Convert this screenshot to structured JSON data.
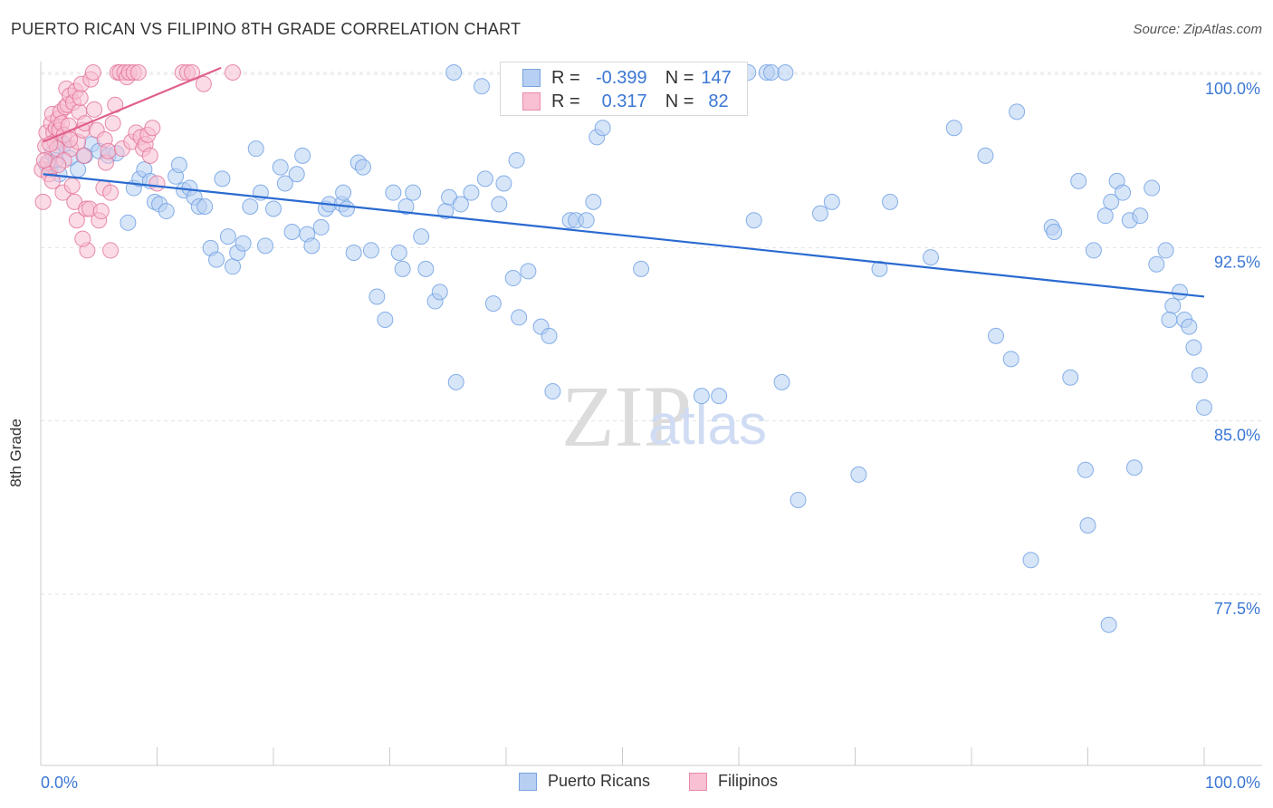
{
  "header": {
    "title": "PUERTO RICAN VS FILIPINO 8TH GRADE CORRELATION CHART",
    "source": "Source: ZipAtlas.com"
  },
  "watermark": {
    "zip": "ZIP",
    "atlas": "atlas"
  },
  "legend_top": {
    "rows": [
      {
        "r_label": "R =",
        "r_value": "-0.399",
        "n_label": "N =",
        "n_value": "147",
        "fill": "#b7cff2",
        "stroke": "#7aa3e0"
      },
      {
        "r_label": "R =",
        "r_value": "0.317",
        "n_label": "N =",
        "n_value": "82",
        "fill": "#f8c0d2",
        "stroke": "#e88aaa"
      }
    ]
  },
  "legend_bottom": [
    {
      "label": "Puerto Ricans",
      "fill": "#b7cff2",
      "stroke": "#7aa3e0"
    },
    {
      "label": "Filipinos",
      "fill": "#f8c0d2",
      "stroke": "#e88aaa"
    }
  ],
  "chart_data": {
    "type": "scatter",
    "title": "PUERTO RICAN VS FILIPINO 8TH GRADE CORRELATION CHART",
    "xlabel": "",
    "ylabel": "8th Grade",
    "xlim": [
      0,
      100
    ],
    "ylim": [
      70.0,
      100.6
    ],
    "x_tick_labels": [
      "0.0%",
      "100.0%"
    ],
    "y_ticks": [
      100.0,
      92.5,
      85.0,
      77.5
    ],
    "y_tick_labels": [
      "100.0%",
      "92.5%",
      "85.0%",
      "77.5%"
    ],
    "grid": true,
    "legend_position": "bottom",
    "series": [
      {
        "name": "Puerto Ricans",
        "color": "#6a9de4",
        "fill": "#b7cff2",
        "trend": {
          "x": [
            0.2,
            100
          ],
          "y": [
            95.6,
            90.3
          ]
        },
        "points": [
          [
            0.5,
            96.0
          ],
          [
            0.8,
            95.8
          ],
          [
            1.0,
            96.5
          ],
          [
            1.3,
            96.2
          ],
          [
            1.6,
            95.6
          ],
          [
            1.8,
            97.0
          ],
          [
            2.0,
            96.9
          ],
          [
            2.5,
            96.3
          ],
          [
            3.2,
            95.8
          ],
          [
            3.8,
            96.4
          ],
          [
            4.4,
            96.9
          ],
          [
            5.0,
            96.6
          ],
          [
            5.8,
            96.4
          ],
          [
            6.5,
            96.5
          ],
          [
            7.5,
            93.5
          ],
          [
            8.0,
            95.0
          ],
          [
            8.5,
            95.4
          ],
          [
            8.9,
            95.8
          ],
          [
            9.4,
            95.3
          ],
          [
            9.8,
            94.4
          ],
          [
            10.2,
            94.3
          ],
          [
            10.8,
            94.0
          ],
          [
            11.6,
            95.5
          ],
          [
            11.9,
            96.0
          ],
          [
            12.3,
            94.9
          ],
          [
            12.8,
            95.0
          ],
          [
            13.2,
            94.6
          ],
          [
            13.6,
            94.2
          ],
          [
            14.1,
            94.2
          ],
          [
            14.6,
            92.4
          ],
          [
            15.1,
            91.9
          ],
          [
            15.6,
            95.4
          ],
          [
            16.1,
            92.9
          ],
          [
            16.5,
            91.6
          ],
          [
            16.9,
            92.2
          ],
          [
            17.4,
            92.6
          ],
          [
            18.0,
            94.2
          ],
          [
            18.5,
            96.7
          ],
          [
            18.9,
            94.8
          ],
          [
            19.3,
            92.5
          ],
          [
            20.0,
            94.1
          ],
          [
            20.6,
            95.9
          ],
          [
            21.0,
            95.2
          ],
          [
            21.6,
            93.1
          ],
          [
            22.0,
            95.6
          ],
          [
            22.5,
            96.4
          ],
          [
            22.9,
            93.0
          ],
          [
            23.3,
            92.5
          ],
          [
            24.1,
            93.3
          ],
          [
            24.5,
            94.1
          ],
          [
            24.8,
            94.3
          ],
          [
            25.9,
            94.3
          ],
          [
            26.0,
            94.8
          ],
          [
            26.3,
            94.1
          ],
          [
            26.9,
            92.2
          ],
          [
            27.3,
            96.1
          ],
          [
            27.7,
            95.9
          ],
          [
            28.4,
            92.3
          ],
          [
            28.9,
            90.3
          ],
          [
            29.6,
            89.3
          ],
          [
            30.3,
            94.8
          ],
          [
            30.8,
            92.2
          ],
          [
            31.1,
            91.5
          ],
          [
            31.4,
            94.2
          ],
          [
            32.0,
            94.8
          ],
          [
            32.7,
            92.9
          ],
          [
            33.1,
            91.5
          ],
          [
            33.9,
            90.1
          ],
          [
            34.3,
            90.5
          ],
          [
            34.8,
            94.0
          ],
          [
            35.1,
            94.6
          ],
          [
            35.5,
            100.0
          ],
          [
            35.7,
            86.6
          ],
          [
            36.1,
            94.3
          ],
          [
            37.0,
            94.8
          ],
          [
            37.9,
            99.4
          ],
          [
            38.2,
            95.4
          ],
          [
            38.9,
            90.0
          ],
          [
            39.4,
            94.3
          ],
          [
            39.8,
            95.2
          ],
          [
            40.6,
            91.1
          ],
          [
            40.9,
            96.2
          ],
          [
            41.1,
            89.4
          ],
          [
            41.9,
            91.4
          ],
          [
            43.0,
            89.0
          ],
          [
            43.7,
            88.6
          ],
          [
            44.0,
            86.2
          ],
          [
            45.5,
            93.6
          ],
          [
            46.0,
            93.6
          ],
          [
            46.9,
            93.6
          ],
          [
            47.5,
            94.4
          ],
          [
            47.8,
            97.2
          ],
          [
            48.3,
            97.6
          ],
          [
            48.7,
            100.0
          ],
          [
            49.6,
            100.0
          ],
          [
            51.2,
            100.0
          ],
          [
            51.6,
            91.5
          ],
          [
            52.6,
            100.0
          ],
          [
            53.4,
            100.0
          ],
          [
            56.8,
            86.0
          ],
          [
            58.3,
            86.0
          ],
          [
            59.5,
            100.0
          ],
          [
            60.8,
            100.0
          ],
          [
            61.3,
            93.6
          ],
          [
            62.4,
            100.0
          ],
          [
            62.8,
            100.0
          ],
          [
            63.7,
            86.6
          ],
          [
            64.0,
            100.0
          ],
          [
            65.1,
            81.5
          ],
          [
            67.0,
            93.9
          ],
          [
            68.0,
            94.4
          ],
          [
            70.3,
            82.6
          ],
          [
            72.1,
            91.5
          ],
          [
            73.0,
            94.4
          ],
          [
            76.5,
            92.0
          ],
          [
            78.5,
            97.6
          ],
          [
            81.2,
            96.4
          ],
          [
            82.1,
            88.6
          ],
          [
            83.4,
            87.6
          ],
          [
            83.9,
            98.3
          ],
          [
            85.1,
            78.9
          ],
          [
            86.9,
            93.3
          ],
          [
            87.1,
            93.1
          ],
          [
            88.5,
            86.8
          ],
          [
            89.2,
            95.3
          ],
          [
            89.8,
            82.8
          ],
          [
            90.0,
            80.4
          ],
          [
            90.5,
            92.3
          ],
          [
            91.5,
            93.8
          ],
          [
            92.0,
            94.4
          ],
          [
            92.5,
            95.3
          ],
          [
            93.0,
            94.8
          ],
          [
            93.6,
            93.6
          ],
          [
            94.0,
            82.9
          ],
          [
            94.5,
            93.8
          ],
          [
            95.5,
            95.0
          ],
          [
            95.9,
            91.7
          ],
          [
            96.7,
            92.3
          ],
          [
            97.3,
            89.9
          ],
          [
            97.9,
            90.5
          ],
          [
            98.3,
            89.3
          ],
          [
            98.7,
            89.0
          ],
          [
            99.1,
            88.1
          ],
          [
            99.6,
            86.9
          ],
          [
            100.0,
            85.5
          ],
          [
            91.8,
            76.1
          ],
          [
            97.0,
            89.3
          ]
        ]
      },
      {
        "name": "Filipinos",
        "color": "#e27096",
        "fill": "#f8c0d2",
        "trend": {
          "x": [
            0.2,
            15.5
          ],
          "y": [
            97.0,
            100.2
          ]
        },
        "points": [
          [
            0.1,
            95.8
          ],
          [
            0.2,
            94.4
          ],
          [
            0.4,
            96.8
          ],
          [
            0.5,
            97.4
          ],
          [
            0.6,
            96.1
          ],
          [
            0.7,
            95.6
          ],
          [
            0.9,
            97.8
          ],
          [
            1.0,
            98.2
          ],
          [
            1.1,
            97.4
          ],
          [
            1.2,
            97.0
          ],
          [
            1.3,
            97.6
          ],
          [
            1.4,
            96.7
          ],
          [
            1.5,
            98.0
          ],
          [
            1.6,
            97.5
          ],
          [
            1.7,
            98.3
          ],
          [
            1.8,
            97.8
          ],
          [
            1.9,
            94.8
          ],
          [
            2.0,
            97.3
          ],
          [
            2.1,
            98.5
          ],
          [
            2.2,
            99.3
          ],
          [
            2.3,
            98.6
          ],
          [
            2.4,
            97.7
          ],
          [
            2.5,
            99.0
          ],
          [
            2.6,
            96.7
          ],
          [
            2.7,
            95.1
          ],
          [
            2.8,
            98.7
          ],
          [
            2.9,
            94.4
          ],
          [
            3.0,
            99.2
          ],
          [
            3.1,
            93.6
          ],
          [
            3.2,
            97.0
          ],
          [
            3.3,
            98.3
          ],
          [
            3.4,
            98.9
          ],
          [
            3.5,
            99.5
          ],
          [
            3.6,
            97.5
          ],
          [
            3.7,
            96.4
          ],
          [
            3.8,
            97.8
          ],
          [
            3.9,
            94.1
          ],
          [
            4.0,
            92.3
          ],
          [
            4.2,
            94.1
          ],
          [
            4.3,
            99.7
          ],
          [
            4.5,
            100.0
          ],
          [
            4.6,
            98.4
          ],
          [
            4.8,
            97.5
          ],
          [
            5.0,
            93.6
          ],
          [
            5.2,
            94.0
          ],
          [
            5.4,
            95.0
          ],
          [
            5.5,
            97.1
          ],
          [
            5.6,
            96.1
          ],
          [
            5.8,
            96.6
          ],
          [
            6.0,
            94.8
          ],
          [
            6.2,
            97.8
          ],
          [
            6.4,
            98.6
          ],
          [
            6.6,
            100.0
          ],
          [
            6.8,
            100.0
          ],
          [
            7.0,
            96.7
          ],
          [
            7.2,
            100.0
          ],
          [
            7.4,
            99.8
          ],
          [
            7.6,
            100.0
          ],
          [
            7.8,
            97.0
          ],
          [
            8.0,
            100.0
          ],
          [
            8.2,
            97.4
          ],
          [
            8.4,
            100.0
          ],
          [
            8.6,
            97.2
          ],
          [
            8.8,
            96.7
          ],
          [
            9.0,
            96.9
          ],
          [
            9.2,
            97.3
          ],
          [
            9.4,
            96.4
          ],
          [
            9.6,
            97.6
          ],
          [
            10.0,
            95.2
          ],
          [
            12.2,
            100.0
          ],
          [
            12.6,
            100.0
          ],
          [
            13.0,
            100.0
          ],
          [
            14.0,
            99.5
          ],
          [
            16.5,
            100.0
          ],
          [
            3.6,
            92.8
          ],
          [
            6.0,
            92.3
          ],
          [
            1.0,
            95.3
          ],
          [
            2.0,
            96.2
          ],
          [
            0.3,
            96.2
          ],
          [
            0.8,
            96.9
          ],
          [
            1.5,
            96.0
          ],
          [
            2.5,
            97.1
          ]
        ]
      }
    ]
  }
}
